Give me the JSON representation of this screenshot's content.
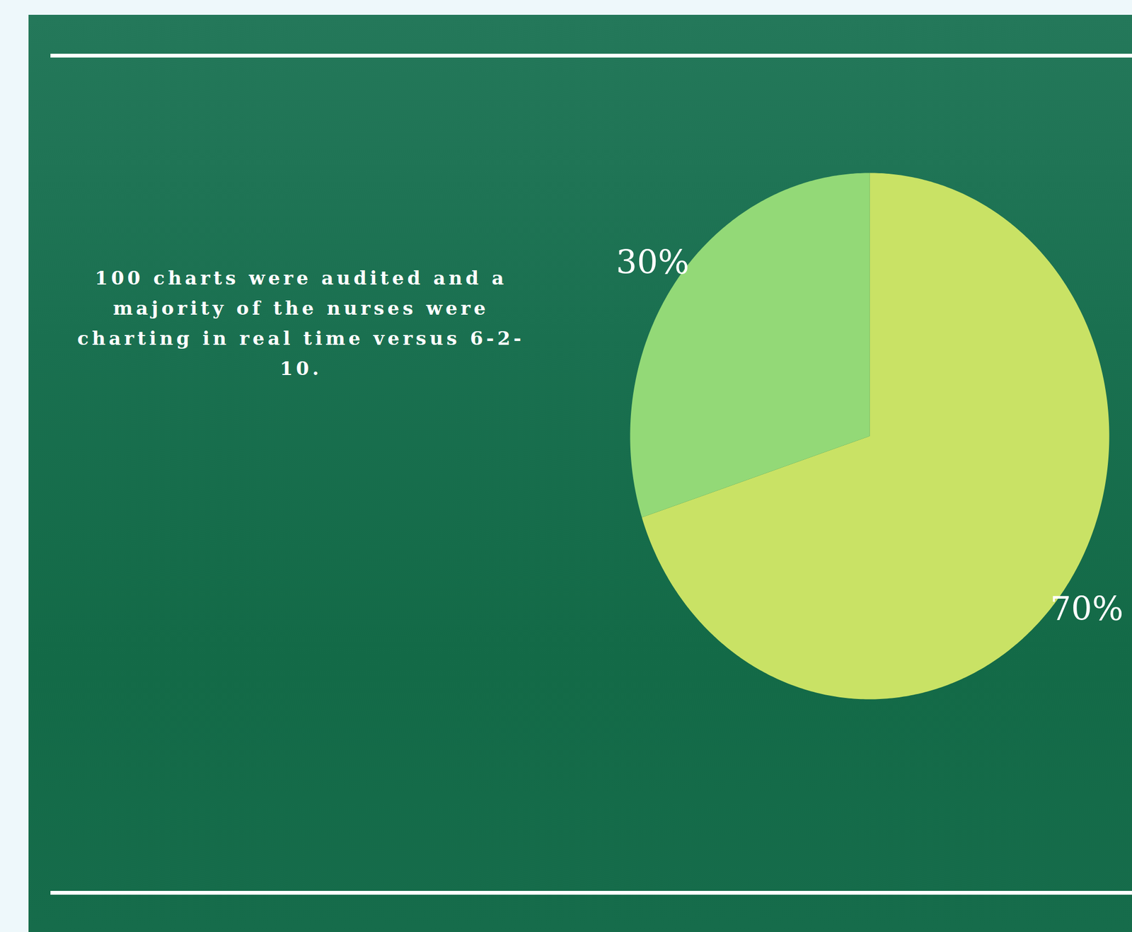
{
  "chart_data": {
    "type": "pie",
    "annotations": [
      "100 charts were audited and a majority of the nurses were charting in real time versus 6-2-10."
    ],
    "values": [
      70,
      30
    ],
    "value_labels": [
      "70%",
      "30%"
    ],
    "colors": [
      "#c9e265",
      "#93d977"
    ],
    "data_labels": true
  }
}
